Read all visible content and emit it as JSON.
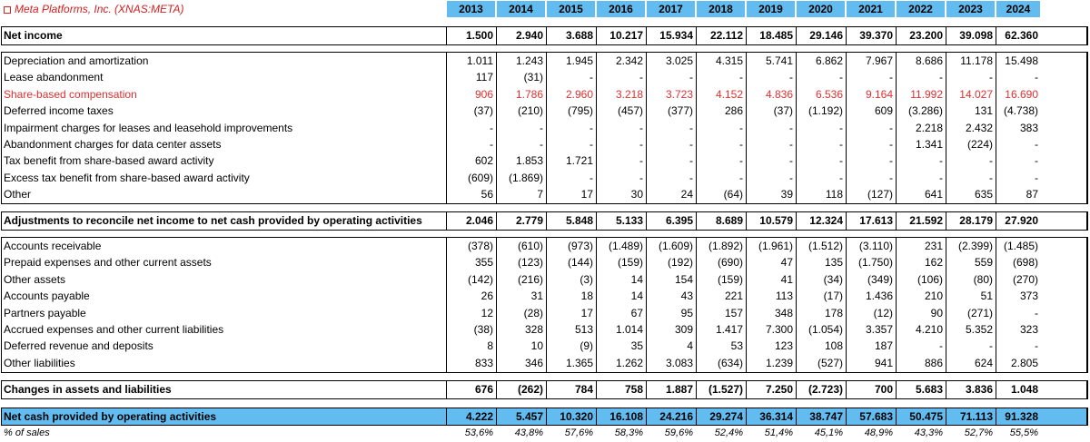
{
  "header": {
    "company": "Meta Platforms, Inc. (XNAS:META)",
    "years": [
      "2013",
      "2014",
      "2015",
      "2016",
      "2017",
      "2018",
      "2019",
      "2020",
      "2021",
      "2022",
      "2023",
      "2024"
    ]
  },
  "net_income": {
    "label": "Net income",
    "values": [
      "1.500",
      "2.940",
      "3.688",
      "10.217",
      "15.934",
      "22.112",
      "18.485",
      "29.146",
      "39.370",
      "23.200",
      "39.098",
      "62.360"
    ]
  },
  "adjustments": [
    {
      "label": "Depreciation and amortization",
      "values": [
        "1.011",
        "1.243",
        "1.945",
        "2.342",
        "3.025",
        "4.315",
        "5.741",
        "6.862",
        "7.967",
        "8.686",
        "11.178",
        "15.498"
      ]
    },
    {
      "label": "Lease abandonment",
      "values": [
        "117",
        "(31)",
        "-",
        "-",
        "-",
        "-",
        "-",
        "-",
        "-",
        "-",
        "-",
        "-"
      ]
    },
    {
      "label": "Share-based compensation",
      "values": [
        "906",
        "1.786",
        "2.960",
        "3.218",
        "3.723",
        "4.152",
        "4.836",
        "6.536",
        "9.164",
        "11.992",
        "14.027",
        "16.690"
      ],
      "red": true
    },
    {
      "label": "Deferred income taxes",
      "values": [
        "(37)",
        "(210)",
        "(795)",
        "(457)",
        "(377)",
        "286",
        "(37)",
        "(1.192)",
        "609",
        "(3.286)",
        "131",
        "(4.738)"
      ]
    },
    {
      "label": "Impairment charges for leases and leasehold improvements",
      "values": [
        "-",
        "-",
        "-",
        "-",
        "-",
        "-",
        "-",
        "-",
        "-",
        "2.218",
        "2.432",
        "383"
      ]
    },
    {
      "label": "Abandonment charges for data center assets",
      "values": [
        "-",
        "-",
        "-",
        "-",
        "-",
        "-",
        "-",
        "-",
        "-",
        "1.341",
        "(224)",
        "-"
      ]
    },
    {
      "label": "Tax benefit from share-based award activity",
      "values": [
        "602",
        "1.853",
        "1.721",
        "-",
        "-",
        "-",
        "-",
        "-",
        "-",
        "-",
        "-",
        "-"
      ]
    },
    {
      "label": "Excess tax benefit from share-based award activity",
      "values": [
        "(609)",
        "(1.869)",
        "-",
        "-",
        "-",
        "-",
        "-",
        "-",
        "-",
        "-",
        "-",
        "-"
      ]
    },
    {
      "label": "Other",
      "values": [
        "56",
        "7",
        "17",
        "30",
        "24",
        "(64)",
        "39",
        "118",
        "(127)",
        "641",
        "635",
        "87"
      ]
    }
  ],
  "adjustments_total": {
    "label": "Adjustments to reconcile net income to net cash provided by operating activities",
    "values": [
      "2.046",
      "2.779",
      "5.848",
      "5.133",
      "6.395",
      "8.689",
      "10.579",
      "12.324",
      "17.613",
      "21.592",
      "28.179",
      "27.920"
    ]
  },
  "changes": [
    {
      "label": "Accounts receivable",
      "values": [
        "(378)",
        "(610)",
        "(973)",
        "(1.489)",
        "(1.609)",
        "(1.892)",
        "(1.961)",
        "(1.512)",
        "(3.110)",
        "231",
        "(2.399)",
        "(1.485)"
      ]
    },
    {
      "label": "Prepaid expenses and other current assets",
      "values": [
        "355",
        "(123)",
        "(144)",
        "(159)",
        "(192)",
        "(690)",
        "47",
        "135",
        "(1.750)",
        "162",
        "559",
        "(698)"
      ]
    },
    {
      "label": "Other assets",
      "values": [
        "(142)",
        "(216)",
        "(3)",
        "14",
        "154",
        "(159)",
        "41",
        "(34)",
        "(349)",
        "(106)",
        "(80)",
        "(270)"
      ]
    },
    {
      "label": "Accounts payable",
      "values": [
        "26",
        "31",
        "18",
        "14",
        "43",
        "221",
        "113",
        "(17)",
        "1.436",
        "210",
        "51",
        "373"
      ]
    },
    {
      "label": "Partners payable",
      "values": [
        "12",
        "(28)",
        "17",
        "67",
        "95",
        "157",
        "348",
        "178",
        "(12)",
        "90",
        "(271)",
        "-"
      ]
    },
    {
      "label": "Accrued expenses and other current liabilities",
      "values": [
        "(38)",
        "328",
        "513",
        "1.014",
        "309",
        "1.417",
        "7.300",
        "(1.054)",
        "3.357",
        "4.210",
        "5.352",
        "323"
      ]
    },
    {
      "label": "Deferred revenue and deposits",
      "values": [
        "8",
        "10",
        "(9)",
        "35",
        "4",
        "53",
        "123",
        "108",
        "187",
        "-",
        "-",
        "-"
      ]
    },
    {
      "label": "Other liabilities",
      "values": [
        "833",
        "346",
        "1.365",
        "1.262",
        "3.083",
        "(634)",
        "1.239",
        "(527)",
        "941",
        "886",
        "624",
        "2.805"
      ]
    }
  ],
  "changes_total": {
    "label": "Changes in assets and liabilities",
    "values": [
      "676",
      "(262)",
      "784",
      "758",
      "1.887",
      "(1.527)",
      "7.250",
      "(2.723)",
      "700",
      "5.683",
      "3.836",
      "1.048"
    ]
  },
  "net_cash": {
    "label": "Net cash provided by operating activities",
    "values": [
      "4.222",
      "5.457",
      "10.320",
      "16.108",
      "24.216",
      "29.274",
      "36.314",
      "38.747",
      "57.683",
      "50.475",
      "71.113",
      "91.328"
    ]
  },
  "pct_sales": {
    "label": "% of sales",
    "values": [
      "53,6%",
      "43,8%",
      "57,6%",
      "58,3%",
      "59,6%",
      "52,4%",
      "51,4%",
      "45,1%",
      "48,9%",
      "43,3%",
      "52,7%",
      "55,5%"
    ]
  }
}
